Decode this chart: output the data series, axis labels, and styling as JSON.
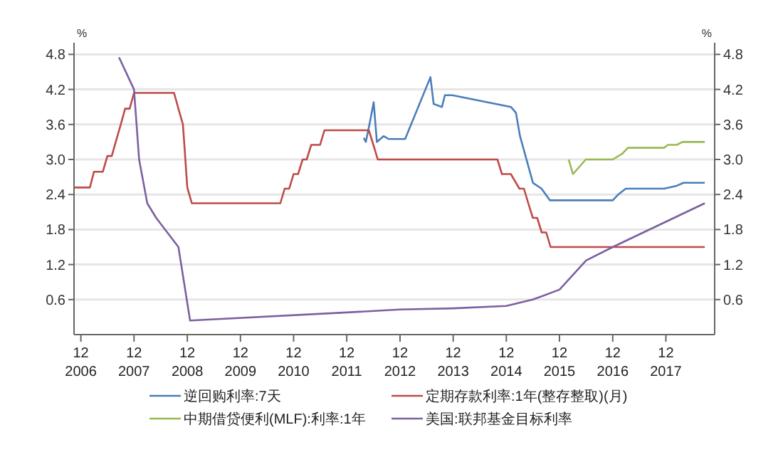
{
  "chart_data": {
    "type": "line",
    "ylabel": "%",
    "y2label": "%",
    "xlim": [
      "2006-10-15",
      "2018-11-01"
    ],
    "xticks": [
      {
        "value": "2006-12",
        "label": "12\n2006"
      },
      {
        "value": "2007-12",
        "label": "12\n2007"
      },
      {
        "value": "2008-12",
        "label": "12\n2008"
      },
      {
        "value": "2009-12",
        "label": "12\n2009"
      },
      {
        "value": "2010-12",
        "label": "12\n2010"
      },
      {
        "value": "2011-12",
        "label": "12\n2011"
      },
      {
        "value": "2012-12",
        "label": "12\n2012"
      },
      {
        "value": "2013-12",
        "label": "12\n2013"
      },
      {
        "value": "2014-12",
        "label": "12\n2014"
      },
      {
        "value": "2015-12",
        "label": "12\n2015"
      },
      {
        "value": "2016-12",
        "label": "12\n2016"
      },
      {
        "value": "2017-12",
        "label": "12\n2017"
      }
    ],
    "ylim": [
      0,
      5.0
    ],
    "yticks": [
      0.6,
      1.2,
      1.8,
      2.4,
      {
        "value": 3,
        "label": "3.0"
      },
      3.6,
      4.2,
      4.8
    ],
    "y2lim": [
      0,
      5.0
    ],
    "y2ticks": [
      0.6,
      1.2,
      1.8,
      2.4,
      {
        "value": 3,
        "label": "3.0"
      },
      3.6,
      4.2,
      4.8
    ],
    "grid": "y",
    "legend": "bottom",
    "marker": "none",
    "line_style": "solid",
    "series": [
      {
        "name": "逆回购利率:7天",
        "color": "#4a7ebb",
        "x": [
          "2012-03-27",
          "2012-04-10",
          "2012-05-05",
          "2012-06-03",
          "2012-06-25",
          "2012-08-10",
          "2012-09-15",
          "2013-01-05",
          "2013-06-28",
          "2013-07-20",
          "2013-09-15",
          "2013-10-05",
          "2013-11-25",
          "2015-01-01",
          "2015-02-05",
          "2015-03-05",
          "2015-06-02",
          "2015-07-31",
          "2015-09-27",
          "2016-12-01",
          "2017-01-08",
          "2017-02-28",
          "2017-11-18",
          "2018-02-14",
          "2018-04-01",
          "2018-08-25"
        ],
        "values": [
          3.37,
          3.3,
          3.6,
          3.98,
          3.3,
          3.4,
          3.35,
          3.35,
          4.41,
          3.95,
          3.9,
          4.1,
          4.1,
          3.9,
          3.8,
          3.4,
          2.6,
          2.5,
          2.3,
          2.3,
          2.4,
          2.5,
          2.5,
          2.55,
          2.6,
          2.6
        ]
      },
      {
        "name": "定期存款利率:1年(整存整取)(月)",
        "color": "#be4b48",
        "x": [
          "2006-10-15",
          "2007-02-01",
          "2007-03-01",
          "2007-05-01",
          "2007-06-01",
          "2007-07-01",
          "2007-08-01",
          "2007-09-01",
          "2007-10-01",
          "2007-11-01",
          "2007-12-01",
          "2008-09-01",
          "2008-10-01",
          "2008-11-01",
          "2008-12-01",
          "2009-01-01",
          "2010-09-01",
          "2010-10-01",
          "2010-11-01",
          "2010-12-01",
          "2011-01-01",
          "2011-02-01",
          "2011-03-01",
          "2011-04-01",
          "2011-06-01",
          "2011-07-01",
          "2012-05-01",
          "2012-06-01",
          "2012-07-01",
          "2014-10-01",
          "2014-11-01",
          "2015-01-01",
          "2015-03-01",
          "2015-04-01",
          "2015-05-01",
          "2015-06-01",
          "2015-07-01",
          "2015-08-01",
          "2015-09-01",
          "2015-10-01",
          "2018-08-25"
        ],
        "values": [
          2.52,
          2.52,
          2.79,
          2.79,
          3.06,
          3.06,
          3.33,
          3.6,
          3.87,
          3.87,
          4.14,
          4.14,
          3.87,
          3.6,
          2.52,
          2.25,
          2.25,
          2.5,
          2.5,
          2.75,
          2.75,
          3.0,
          3.0,
          3.25,
          3.25,
          3.5,
          3.5,
          3.25,
          3.0,
          3.0,
          2.75,
          2.75,
          2.5,
          2.5,
          2.25,
          2.0,
          2.0,
          1.75,
          1.75,
          1.5,
          1.5
        ]
      },
      {
        "name": "中期借贷便利(MLF):利率:1年",
        "color": "#98b954",
        "x": [
          "2016-02-02",
          "2016-03-03",
          "2016-05-30",
          "2016-12-01",
          "2017-02-05",
          "2017-03-15",
          "2017-11-18",
          "2017-12-15",
          "2018-02-14",
          "2018-03-25",
          "2018-08-25"
        ],
        "values": [
          3.0,
          2.75,
          3.0,
          3.0,
          3.1,
          3.2,
          3.2,
          3.25,
          3.25,
          3.3,
          3.3
        ]
      },
      {
        "name": "美国:联邦基金目标利率",
        "color": "#7d60a0",
        "x": [
          "2007-08-20",
          "2007-12-01",
          "2008-01-05",
          "2008-03-01",
          "2008-05-01",
          "2008-10-01",
          "2008-12-20",
          "2011-12-01",
          "2012-12-01",
          "2013-12-01",
          "2014-12-01",
          "2015-06-01",
          "2015-12-01",
          "2016-06-01",
          "2016-12-01",
          "2018-08-25"
        ],
        "values": [
          4.75,
          4.2,
          3.0,
          2.25,
          2.0,
          1.5,
          0.24,
          0.38,
          0.43,
          0.45,
          0.49,
          0.6,
          0.77,
          1.27,
          1.5,
          2.25
        ]
      }
    ]
  }
}
